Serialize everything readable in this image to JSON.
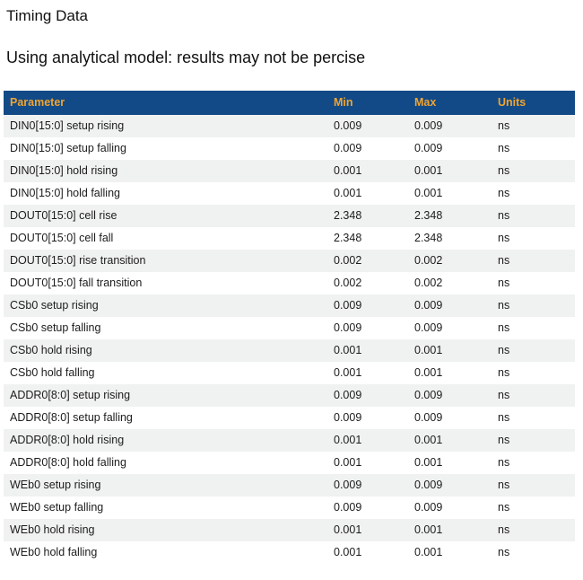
{
  "page": {
    "title": "Timing Data",
    "subtitle": "Using analytical model: results may not be percise"
  },
  "colors": {
    "table_header_bg": "#124A87",
    "table_header_text": "#F0A430",
    "row_alt_bg": "#F0F1F1",
    "body_text": "#1C1C1C"
  },
  "table": {
    "columns": [
      "Parameter",
      "Min",
      "Max",
      "Units"
    ],
    "rows": [
      {
        "parameter": "DIN0[15:0] setup rising",
        "min": "0.009",
        "max": "0.009",
        "units": "ns"
      },
      {
        "parameter": "DIN0[15:0] setup falling",
        "min": "0.009",
        "max": "0.009",
        "units": "ns"
      },
      {
        "parameter": "DIN0[15:0] hold rising",
        "min": "0.001",
        "max": "0.001",
        "units": "ns"
      },
      {
        "parameter": "DIN0[15:0] hold falling",
        "min": "0.001",
        "max": "0.001",
        "units": "ns"
      },
      {
        "parameter": "DOUT0[15:0] cell rise",
        "min": "2.348",
        "max": "2.348",
        "units": "ns"
      },
      {
        "parameter": "DOUT0[15:0] cell fall",
        "min": "2.348",
        "max": "2.348",
        "units": "ns"
      },
      {
        "parameter": "DOUT0[15:0] rise transition",
        "min": "0.002",
        "max": "0.002",
        "units": "ns"
      },
      {
        "parameter": "DOUT0[15:0] fall transition",
        "min": "0.002",
        "max": "0.002",
        "units": "ns"
      },
      {
        "parameter": "CSb0 setup rising",
        "min": "0.009",
        "max": "0.009",
        "units": "ns"
      },
      {
        "parameter": "CSb0 setup falling",
        "min": "0.009",
        "max": "0.009",
        "units": "ns"
      },
      {
        "parameter": "CSb0 hold rising",
        "min": "0.001",
        "max": "0.001",
        "units": "ns"
      },
      {
        "parameter": "CSb0 hold falling",
        "min": "0.001",
        "max": "0.001",
        "units": "ns"
      },
      {
        "parameter": "ADDR0[8:0] setup rising",
        "min": "0.009",
        "max": "0.009",
        "units": "ns"
      },
      {
        "parameter": "ADDR0[8:0] setup falling",
        "min": "0.009",
        "max": "0.009",
        "units": "ns"
      },
      {
        "parameter": "ADDR0[8:0] hold rising",
        "min": "0.001",
        "max": "0.001",
        "units": "ns"
      },
      {
        "parameter": "ADDR0[8:0] hold falling",
        "min": "0.001",
        "max": "0.001",
        "units": "ns"
      },
      {
        "parameter": "WEb0 setup rising",
        "min": "0.009",
        "max": "0.009",
        "units": "ns"
      },
      {
        "parameter": "WEb0 setup falling",
        "min": "0.009",
        "max": "0.009",
        "units": "ns"
      },
      {
        "parameter": "WEb0 hold rising",
        "min": "0.001",
        "max": "0.001",
        "units": "ns"
      },
      {
        "parameter": "WEb0 hold falling",
        "min": "0.001",
        "max": "0.001",
        "units": "ns"
      }
    ]
  }
}
